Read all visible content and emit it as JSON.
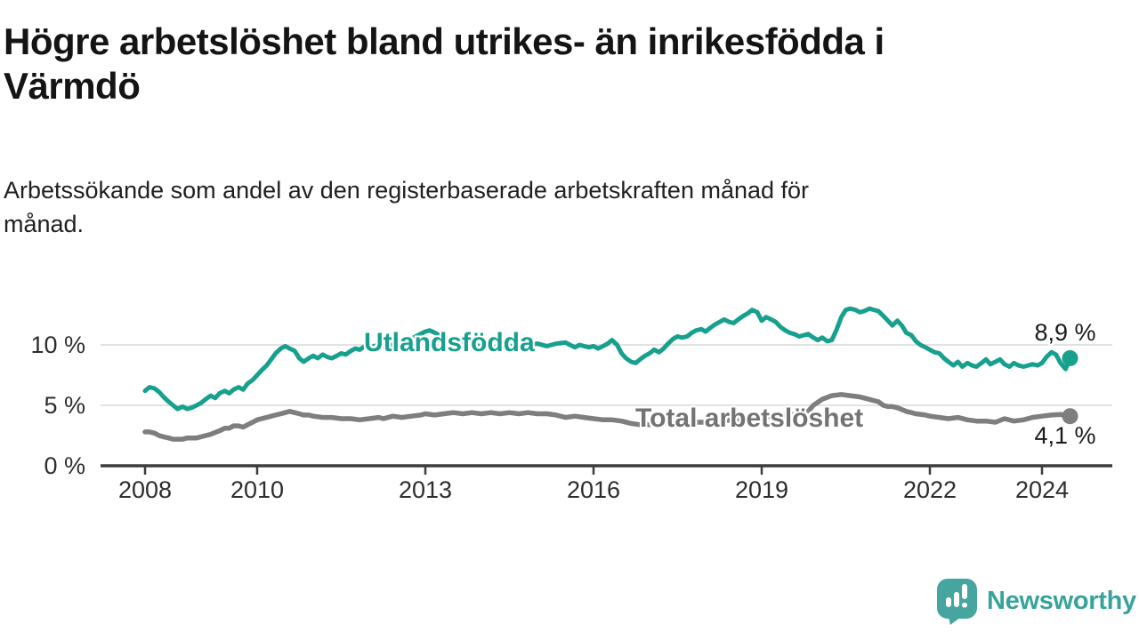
{
  "header": {
    "title": "Högre arbetslöshet bland utrikes- än inrikesfödda i\nVärmdö",
    "subtitle": "Arbetssökande som andel av den registerbaserade arbetskraften månad för\nmånad."
  },
  "footer": {
    "brand": "Newsworthy"
  },
  "colors": {
    "series_utlandsfodda": "#17a08d",
    "series_total": "#7e7e7e",
    "axis": "#3d3d3d",
    "tick": "#3d3d3d",
    "gridline": "#d9d9d9",
    "text_dark": "#1a1a1a",
    "logo_teal": "#46a59f"
  },
  "chart_data": {
    "type": "line",
    "title": "Högre arbetslöshet bland utrikes- än inrikesfödda i Värmdö",
    "subtitle": "Arbetssökande som andel av den registerbaserade arbetskraften månad för månad.",
    "xlabel": "",
    "ylabel": "",
    "grid": true,
    "legend_position": "inline-on-line",
    "x_axis": {
      "ticks": [
        2008,
        2010,
        2013,
        2016,
        2019,
        2022,
        2024
      ],
      "range": [
        2007.25,
        2025.25
      ]
    },
    "y_axis": {
      "unit": "%",
      "range": [
        0,
        14.2
      ],
      "ticks": [
        {
          "value": 0,
          "label": "0 %"
        },
        {
          "value": 5,
          "label": "5 %"
        },
        {
          "value": 10,
          "label": "10 %"
        }
      ]
    },
    "series": [
      {
        "name": "Utlandsfödda",
        "color": "#17a08d",
        "end_label": "8,9 %",
        "end_value": 8.9,
        "points": [
          [
            2008.0,
            6.2
          ],
          [
            2008.08,
            6.5
          ],
          [
            2008.17,
            6.4
          ],
          [
            2008.25,
            6.1
          ],
          [
            2008.33,
            5.7
          ],
          [
            2008.42,
            5.3
          ],
          [
            2008.5,
            5.0
          ],
          [
            2008.58,
            4.7
          ],
          [
            2008.67,
            4.9
          ],
          [
            2008.75,
            4.7
          ],
          [
            2008.83,
            4.8
          ],
          [
            2008.92,
            5.0
          ],
          [
            2009.0,
            5.2
          ],
          [
            2009.08,
            5.5
          ],
          [
            2009.17,
            5.8
          ],
          [
            2009.25,
            5.6
          ],
          [
            2009.33,
            6.0
          ],
          [
            2009.42,
            6.2
          ],
          [
            2009.5,
            6.0
          ],
          [
            2009.58,
            6.3
          ],
          [
            2009.67,
            6.5
          ],
          [
            2009.75,
            6.3
          ],
          [
            2009.83,
            6.8
          ],
          [
            2009.92,
            7.1
          ],
          [
            2010.0,
            7.5
          ],
          [
            2010.08,
            7.9
          ],
          [
            2010.17,
            8.3
          ],
          [
            2010.25,
            8.8
          ],
          [
            2010.33,
            9.3
          ],
          [
            2010.42,
            9.7
          ],
          [
            2010.5,
            9.9
          ],
          [
            2010.58,
            9.7
          ],
          [
            2010.67,
            9.5
          ],
          [
            2010.75,
            8.9
          ],
          [
            2010.83,
            8.6
          ],
          [
            2010.92,
            8.9
          ],
          [
            2011.0,
            9.1
          ],
          [
            2011.08,
            8.9
          ],
          [
            2011.17,
            9.2
          ],
          [
            2011.25,
            9.0
          ],
          [
            2011.33,
            8.9
          ],
          [
            2011.42,
            9.1
          ],
          [
            2011.5,
            9.3
          ],
          [
            2011.58,
            9.2
          ],
          [
            2011.67,
            9.5
          ],
          [
            2011.75,
            9.7
          ],
          [
            2011.83,
            9.6
          ],
          [
            2011.92,
            9.9
          ],
          [
            2012.0,
            9.8
          ],
          [
            2012.17,
            10.0
          ],
          [
            2012.33,
            9.9
          ],
          [
            2012.5,
            10.1
          ],
          [
            2012.67,
            10.3
          ],
          [
            2012.83,
            10.7
          ],
          [
            2013.0,
            11.1
          ],
          [
            2013.08,
            11.2
          ],
          [
            2013.17,
            11.0
          ],
          [
            2013.33,
            10.6
          ],
          [
            2013.5,
            10.3
          ],
          [
            2013.67,
            10.1
          ],
          [
            2013.83,
            10.0
          ],
          [
            2014.0,
            9.9
          ],
          [
            2014.25,
            9.8
          ],
          [
            2014.5,
            9.9
          ],
          [
            2014.75,
            10.0
          ],
          [
            2015.0,
            10.1
          ],
          [
            2015.17,
            9.9
          ],
          [
            2015.33,
            10.1
          ],
          [
            2015.5,
            10.2
          ],
          [
            2015.58,
            10.0
          ],
          [
            2015.67,
            9.8
          ],
          [
            2015.75,
            10.0
          ],
          [
            2015.83,
            9.9
          ],
          [
            2015.92,
            9.8
          ],
          [
            2016.0,
            9.9
          ],
          [
            2016.08,
            9.7
          ],
          [
            2016.17,
            9.9
          ],
          [
            2016.25,
            10.1
          ],
          [
            2016.33,
            10.4
          ],
          [
            2016.42,
            10.0
          ],
          [
            2016.5,
            9.3
          ],
          [
            2016.58,
            8.9
          ],
          [
            2016.67,
            8.6
          ],
          [
            2016.75,
            8.5
          ],
          [
            2016.83,
            8.8
          ],
          [
            2016.92,
            9.1
          ],
          [
            2017.0,
            9.3
          ],
          [
            2017.08,
            9.6
          ],
          [
            2017.17,
            9.4
          ],
          [
            2017.25,
            9.7
          ],
          [
            2017.33,
            10.1
          ],
          [
            2017.42,
            10.5
          ],
          [
            2017.5,
            10.7
          ],
          [
            2017.58,
            10.6
          ],
          [
            2017.67,
            10.7
          ],
          [
            2017.75,
            11.0
          ],
          [
            2017.83,
            11.2
          ],
          [
            2017.92,
            11.3
          ],
          [
            2018.0,
            11.1
          ],
          [
            2018.08,
            11.4
          ],
          [
            2018.17,
            11.7
          ],
          [
            2018.25,
            11.9
          ],
          [
            2018.33,
            12.1
          ],
          [
            2018.42,
            11.9
          ],
          [
            2018.5,
            11.8
          ],
          [
            2018.58,
            12.1
          ],
          [
            2018.67,
            12.4
          ],
          [
            2018.75,
            12.6
          ],
          [
            2018.83,
            12.9
          ],
          [
            2018.92,
            12.7
          ],
          [
            2019.0,
            12.0
          ],
          [
            2019.08,
            12.3
          ],
          [
            2019.17,
            12.1
          ],
          [
            2019.25,
            11.9
          ],
          [
            2019.33,
            11.5
          ],
          [
            2019.42,
            11.2
          ],
          [
            2019.5,
            11.0
          ],
          [
            2019.58,
            10.9
          ],
          [
            2019.67,
            10.7
          ],
          [
            2019.75,
            10.8
          ],
          [
            2019.83,
            10.9
          ],
          [
            2019.92,
            10.6
          ],
          [
            2020.0,
            10.4
          ],
          [
            2020.08,
            10.6
          ],
          [
            2020.17,
            10.3
          ],
          [
            2020.25,
            10.4
          ],
          [
            2020.33,
            11.2
          ],
          [
            2020.42,
            12.3
          ],
          [
            2020.5,
            12.9
          ],
          [
            2020.58,
            13.0
          ],
          [
            2020.67,
            12.9
          ],
          [
            2020.75,
            12.7
          ],
          [
            2020.83,
            12.8
          ],
          [
            2020.92,
            13.0
          ],
          [
            2021.0,
            12.9
          ],
          [
            2021.08,
            12.8
          ],
          [
            2021.17,
            12.4
          ],
          [
            2021.25,
            12.0
          ],
          [
            2021.33,
            11.6
          ],
          [
            2021.42,
            12.0
          ],
          [
            2021.5,
            11.6
          ],
          [
            2021.58,
            11.0
          ],
          [
            2021.67,
            10.8
          ],
          [
            2021.75,
            10.3
          ],
          [
            2021.83,
            10.0
          ],
          [
            2021.92,
            9.8
          ],
          [
            2022.0,
            9.6
          ],
          [
            2022.08,
            9.4
          ],
          [
            2022.17,
            9.3
          ],
          [
            2022.25,
            8.9
          ],
          [
            2022.33,
            8.6
          ],
          [
            2022.42,
            8.3
          ],
          [
            2022.5,
            8.6
          ],
          [
            2022.58,
            8.2
          ],
          [
            2022.67,
            8.5
          ],
          [
            2022.75,
            8.3
          ],
          [
            2022.83,
            8.2
          ],
          [
            2022.92,
            8.5
          ],
          [
            2023.0,
            8.8
          ],
          [
            2023.08,
            8.4
          ],
          [
            2023.17,
            8.6
          ],
          [
            2023.25,
            8.8
          ],
          [
            2023.33,
            8.4
          ],
          [
            2023.42,
            8.2
          ],
          [
            2023.5,
            8.5
          ],
          [
            2023.58,
            8.3
          ],
          [
            2023.67,
            8.2
          ],
          [
            2023.75,
            8.3
          ],
          [
            2023.83,
            8.4
          ],
          [
            2023.92,
            8.3
          ],
          [
            2024.0,
            8.5
          ],
          [
            2024.08,
            9.0
          ],
          [
            2024.17,
            9.4
          ],
          [
            2024.25,
            9.2
          ],
          [
            2024.33,
            8.5
          ],
          [
            2024.42,
            8.0
          ],
          [
            2024.5,
            8.9
          ]
        ]
      },
      {
        "name": "Total arbetslöshet",
        "color": "#7e7e7e",
        "end_label": "4,1 %",
        "end_value": 4.1,
        "points": [
          [
            2008.0,
            2.8
          ],
          [
            2008.08,
            2.8
          ],
          [
            2008.17,
            2.7
          ],
          [
            2008.25,
            2.5
          ],
          [
            2008.33,
            2.4
          ],
          [
            2008.42,
            2.3
          ],
          [
            2008.5,
            2.2
          ],
          [
            2008.58,
            2.2
          ],
          [
            2008.67,
            2.2
          ],
          [
            2008.75,
            2.3
          ],
          [
            2008.83,
            2.3
          ],
          [
            2008.92,
            2.3
          ],
          [
            2009.0,
            2.4
          ],
          [
            2009.17,
            2.6
          ],
          [
            2009.33,
            2.9
          ],
          [
            2009.42,
            3.1
          ],
          [
            2009.5,
            3.1
          ],
          [
            2009.58,
            3.3
          ],
          [
            2009.67,
            3.3
          ],
          [
            2009.75,
            3.2
          ],
          [
            2009.83,
            3.4
          ],
          [
            2009.92,
            3.6
          ],
          [
            2010.0,
            3.8
          ],
          [
            2010.08,
            3.9
          ],
          [
            2010.17,
            4.0
          ],
          [
            2010.25,
            4.1
          ],
          [
            2010.33,
            4.2
          ],
          [
            2010.42,
            4.3
          ],
          [
            2010.5,
            4.4
          ],
          [
            2010.58,
            4.5
          ],
          [
            2010.67,
            4.4
          ],
          [
            2010.75,
            4.3
          ],
          [
            2010.83,
            4.2
          ],
          [
            2010.92,
            4.2
          ],
          [
            2011.0,
            4.1
          ],
          [
            2011.17,
            4.0
          ],
          [
            2011.33,
            4.0
          ],
          [
            2011.5,
            3.9
          ],
          [
            2011.67,
            3.9
          ],
          [
            2011.83,
            3.8
          ],
          [
            2012.0,
            3.9
          ],
          [
            2012.17,
            4.0
          ],
          [
            2012.25,
            3.9
          ],
          [
            2012.42,
            4.1
          ],
          [
            2012.58,
            4.0
          ],
          [
            2012.75,
            4.1
          ],
          [
            2012.92,
            4.2
          ],
          [
            2013.0,
            4.3
          ],
          [
            2013.17,
            4.2
          ],
          [
            2013.33,
            4.3
          ],
          [
            2013.5,
            4.4
          ],
          [
            2013.67,
            4.3
          ],
          [
            2013.83,
            4.4
          ],
          [
            2014.0,
            4.3
          ],
          [
            2014.17,
            4.4
          ],
          [
            2014.33,
            4.3
          ],
          [
            2014.5,
            4.4
          ],
          [
            2014.67,
            4.3
          ],
          [
            2014.83,
            4.4
          ],
          [
            2015.0,
            4.3
          ],
          [
            2015.17,
            4.3
          ],
          [
            2015.33,
            4.2
          ],
          [
            2015.5,
            4.0
          ],
          [
            2015.67,
            4.1
          ],
          [
            2015.83,
            4.0
          ],
          [
            2016.0,
            3.9
          ],
          [
            2016.17,
            3.8
          ],
          [
            2016.33,
            3.8
          ],
          [
            2016.5,
            3.7
          ],
          [
            2016.67,
            3.5
          ],
          [
            2016.83,
            3.4
          ],
          [
            2017.0,
            3.4
          ],
          [
            2017.25,
            3.5
          ],
          [
            2017.5,
            3.5
          ],
          [
            2017.75,
            3.6
          ],
          [
            2018.0,
            3.6
          ],
          [
            2018.25,
            3.7
          ],
          [
            2018.5,
            3.8
          ],
          [
            2018.75,
            3.9
          ],
          [
            2019.0,
            4.0
          ],
          [
            2019.25,
            4.1
          ],
          [
            2019.5,
            4.2
          ],
          [
            2019.67,
            4.3
          ],
          [
            2019.83,
            4.5
          ],
          [
            2019.92,
            5.0
          ],
          [
            2020.08,
            5.5
          ],
          [
            2020.25,
            5.8
          ],
          [
            2020.42,
            5.9
          ],
          [
            2020.58,
            5.8
          ],
          [
            2020.75,
            5.7
          ],
          [
            2020.83,
            5.6
          ],
          [
            2021.0,
            5.4
          ],
          [
            2021.08,
            5.3
          ],
          [
            2021.17,
            5.0
          ],
          [
            2021.25,
            4.9
          ],
          [
            2021.33,
            4.9
          ],
          [
            2021.42,
            4.8
          ],
          [
            2021.58,
            4.5
          ],
          [
            2021.75,
            4.3
          ],
          [
            2021.92,
            4.2
          ],
          [
            2022.0,
            4.1
          ],
          [
            2022.17,
            4.0
          ],
          [
            2022.33,
            3.9
          ],
          [
            2022.5,
            4.0
          ],
          [
            2022.67,
            3.8
          ],
          [
            2022.83,
            3.7
          ],
          [
            2023.0,
            3.7
          ],
          [
            2023.17,
            3.6
          ],
          [
            2023.33,
            3.9
          ],
          [
            2023.5,
            3.7
          ],
          [
            2023.67,
            3.8
          ],
          [
            2023.83,
            4.0
          ],
          [
            2024.0,
            4.1
          ],
          [
            2024.17,
            4.2
          ],
          [
            2024.33,
            4.25
          ],
          [
            2024.5,
            4.1
          ]
        ]
      }
    ]
  }
}
